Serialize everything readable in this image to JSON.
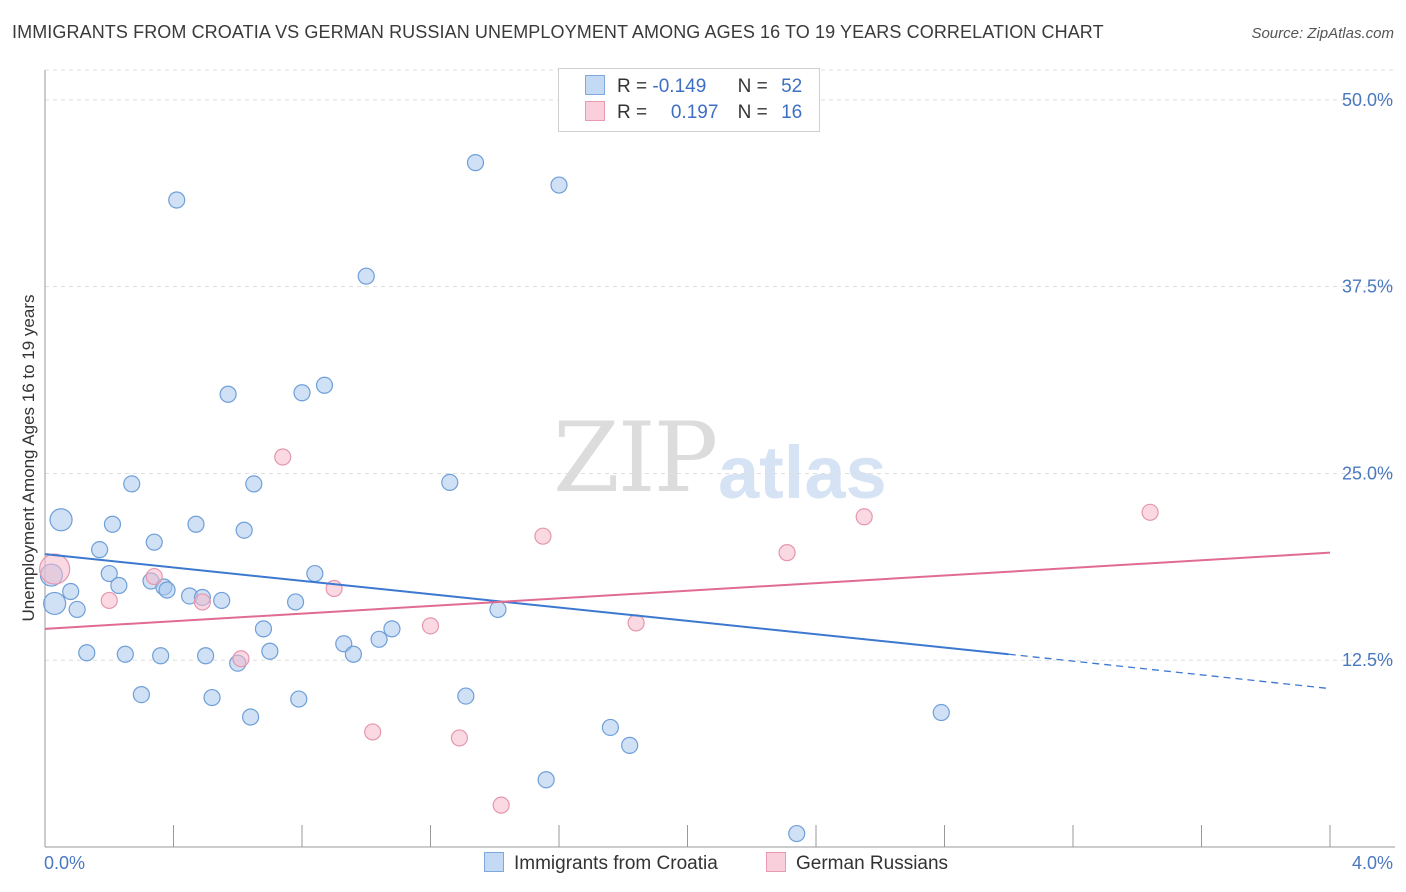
{
  "title": "IMMIGRANTS FROM CROATIA VS GERMAN RUSSIAN UNEMPLOYMENT AMONG AGES 16 TO 19 YEARS CORRELATION CHART",
  "source": "Source: ZipAtlas.com",
  "watermark": {
    "zip": "ZIP",
    "atlas": "atlas"
  },
  "legend": {
    "rows": [
      {
        "r_label": "R =",
        "r_value": "-0.149",
        "n_label": "N =",
        "n_value": "52",
        "color": "#aac8ef"
      },
      {
        "r_label": "R =",
        "r_value": "0.197",
        "n_label": "N =",
        "n_value": "16",
        "color": "#f6b9cb"
      }
    ]
  },
  "bottom_legend": [
    "Immigrants from Croatia",
    "German Russians"
  ],
  "chart_data": {
    "type": "scatter",
    "title": "IMMIGRANTS FROM CROATIA VS GERMAN RUSSIAN UNEMPLOYMENT AMONG AGES 16 TO 19 YEARS CORRELATION CHART",
    "xlabel": "",
    "ylabel": "Unemployment Among Ages 16 to 19 years",
    "xlim": [
      0.0,
      4.0
    ],
    "ylim": [
      0.0,
      52.0
    ],
    "x_tick_labels": [
      "0.0%",
      "4.0%"
    ],
    "y_ticks": [
      12.5,
      25.0,
      37.5,
      50.0
    ],
    "y_tick_labels": [
      "12.5%",
      "25.0%",
      "37.5%",
      "50.0%"
    ],
    "grid": true,
    "legend_position": "top-center",
    "series": [
      {
        "name": "Immigrants from Croatia",
        "color": "#aac8ef",
        "stroke": "#6f9fd8",
        "trend": {
          "x": [
            0.0,
            3.0
          ],
          "y": [
            19.6,
            12.9
          ],
          "dashed_to": [
            4.0,
            10.6
          ],
          "color": "#3d78d0"
        },
        "points": [
          [
            0.02,
            18.2
          ],
          [
            0.03,
            16.3
          ],
          [
            0.05,
            21.9
          ],
          [
            0.08,
            17.1
          ],
          [
            0.1,
            15.9
          ],
          [
            0.13,
            13.0
          ],
          [
            0.17,
            19.9
          ],
          [
            0.2,
            18.3
          ],
          [
            0.21,
            21.6
          ],
          [
            0.23,
            17.5
          ],
          [
            0.25,
            12.9
          ],
          [
            0.27,
            24.3
          ],
          [
            0.3,
            10.2
          ],
          [
            0.33,
            17.8
          ],
          [
            0.34,
            20.4
          ],
          [
            0.36,
            12.8
          ],
          [
            0.37,
            17.4
          ],
          [
            0.38,
            17.2
          ],
          [
            0.41,
            43.3
          ],
          [
            0.45,
            16.8
          ],
          [
            0.47,
            21.6
          ],
          [
            0.49,
            16.7
          ],
          [
            0.5,
            12.8
          ],
          [
            0.52,
            10.0
          ],
          [
            0.55,
            16.5
          ],
          [
            0.57,
            30.3
          ],
          [
            0.6,
            12.3
          ],
          [
            0.62,
            21.2
          ],
          [
            0.64,
            8.7
          ],
          [
            0.65,
            24.3
          ],
          [
            0.68,
            14.6
          ],
          [
            0.7,
            13.1
          ],
          [
            0.78,
            16.4
          ],
          [
            0.79,
            9.9
          ],
          [
            0.8,
            30.4
          ],
          [
            0.84,
            18.3
          ],
          [
            0.87,
            30.9
          ],
          [
            0.93,
            13.6
          ],
          [
            0.96,
            12.9
          ],
          [
            1.0,
            38.2
          ],
          [
            1.04,
            13.9
          ],
          [
            1.08,
            14.6
          ],
          [
            1.26,
            24.4
          ],
          [
            1.31,
            10.1
          ],
          [
            1.34,
            45.8
          ],
          [
            1.41,
            15.9
          ],
          [
            1.56,
            4.5
          ],
          [
            1.6,
            44.3
          ],
          [
            1.76,
            8.0
          ],
          [
            1.82,
            6.8
          ],
          [
            2.34,
            0.9
          ],
          [
            2.79,
            9.0
          ]
        ]
      },
      {
        "name": "German Russians",
        "color": "#f6b9cb",
        "stroke": "#e597ad",
        "trend": {
          "x": [
            0.0,
            4.0
          ],
          "y": [
            14.6,
            19.7
          ],
          "color": "#e06b93"
        },
        "points": [
          [
            0.03,
            18.6
          ],
          [
            0.2,
            16.5
          ],
          [
            0.34,
            18.1
          ],
          [
            0.49,
            16.4
          ],
          [
            0.61,
            12.6
          ],
          [
            0.74,
            26.1
          ],
          [
            0.9,
            17.3
          ],
          [
            1.02,
            7.7
          ],
          [
            1.2,
            14.8
          ],
          [
            1.29,
            7.3
          ],
          [
            1.42,
            2.8
          ],
          [
            1.55,
            20.8
          ],
          [
            1.84,
            15.0
          ],
          [
            2.31,
            19.7
          ],
          [
            2.55,
            22.1
          ],
          [
            3.44,
            22.4
          ]
        ]
      }
    ]
  }
}
